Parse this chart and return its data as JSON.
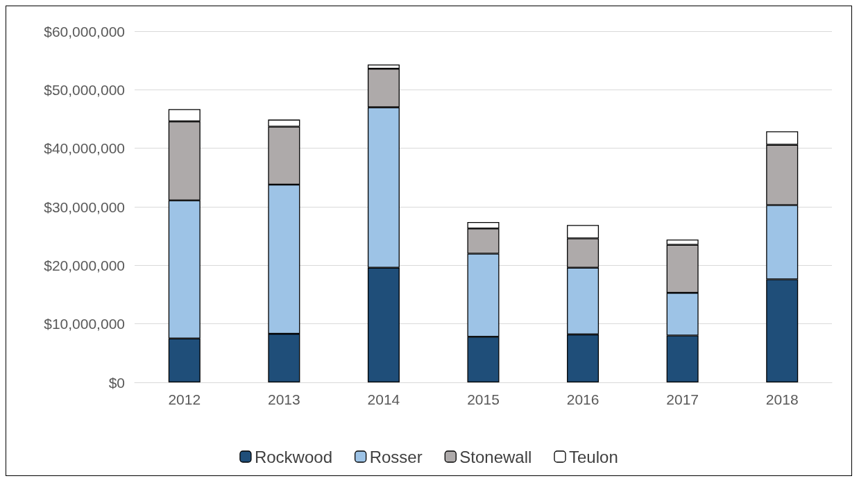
{
  "chart_data": {
    "type": "bar",
    "stacked": true,
    "categories": [
      "2012",
      "2013",
      "2014",
      "2015",
      "2016",
      "2017",
      "2018"
    ],
    "series": [
      {
        "name": "Rockwood",
        "color": "#1f4e79",
        "values": [
          7500000,
          8300000,
          19600000,
          7800000,
          8200000,
          8000000,
          17600000
        ]
      },
      {
        "name": "Rosser",
        "color": "#9dc3e6",
        "values": [
          23600000,
          25500000,
          27400000,
          14200000,
          11400000,
          7300000,
          12700000
        ]
      },
      {
        "name": "Stonewall",
        "color": "#aeaaaa",
        "values": [
          13500000,
          9900000,
          6600000,
          4300000,
          5000000,
          8200000,
          10300000
        ]
      },
      {
        "name": "Teulon",
        "color": "#ffffff",
        "values": [
          2100000,
          1200000,
          700000,
          1100000,
          2300000,
          900000,
          2300000
        ]
      }
    ],
    "ylim": [
      0,
      60000000
    ],
    "yticks": [
      {
        "value": 0,
        "label": "$0"
      },
      {
        "value": 10000000,
        "label": "$10,000,000"
      },
      {
        "value": 20000000,
        "label": "$20,000,000"
      },
      {
        "value": 30000000,
        "label": "$30,000,000"
      },
      {
        "value": 40000000,
        "label": "$40,000,000"
      },
      {
        "value": 50000000,
        "label": "$50,000,000"
      },
      {
        "value": 60000000,
        "label": "$60,000,000"
      }
    ],
    "grid": "y",
    "legend": "bottom"
  }
}
